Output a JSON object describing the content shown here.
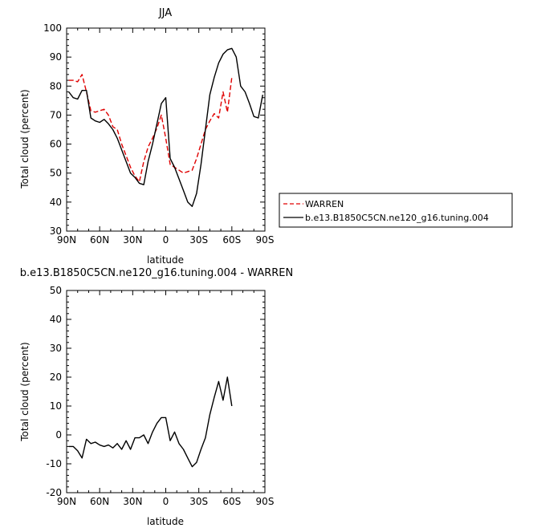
{
  "chart_data": [
    {
      "type": "line",
      "title": "JJA",
      "xlabel": "latitude",
      "ylabel": "Total cloud (percent)",
      "xlim": [
        90,
        -90
      ],
      "ylim": [
        30,
        100
      ],
      "x_ticks": [
        90,
        60,
        30,
        0,
        -30,
        -60,
        -90
      ],
      "x_tick_labels": [
        "90N",
        "60N",
        "30N",
        "0",
        "30S",
        "60S",
        "90S"
      ],
      "y_ticks": [
        30,
        40,
        50,
        60,
        70,
        80,
        90,
        100
      ],
      "y_tick_labels": [
        "30",
        "40",
        "50",
        "60",
        "70",
        "80",
        "90",
        "100"
      ],
      "legend": {
        "placement": "right",
        "entries": [
          {
            "label": "WARREN",
            "color": "#e00000",
            "dash": "dashed"
          },
          {
            "label": "b.e13.B1850C5CN.ne120_g16.tuning.004",
            "color": "#000000",
            "dash": "solid"
          }
        ]
      },
      "series": [
        {
          "name": "WARREN",
          "color": "#e00000",
          "dash": "dashed",
          "x": [
            88,
            84,
            80,
            76,
            72,
            68,
            64,
            60,
            56,
            52,
            48,
            44,
            40,
            36,
            32,
            28,
            24,
            20,
            16,
            12,
            8,
            4,
            0,
            -4,
            -8,
            -12,
            -16,
            -20,
            -24,
            -28,
            -32,
            -36,
            -40,
            -44,
            -48,
            -52,
            -56,
            -60
          ],
          "y": [
            82,
            82,
            81.5,
            84,
            78,
            71.5,
            71,
            71.5,
            72,
            70,
            66,
            65,
            60,
            56,
            52,
            49,
            47,
            54,
            59,
            62,
            65.5,
            70,
            62,
            53,
            52,
            51,
            50,
            50.5,
            51,
            55,
            60,
            65,
            68,
            70.5,
            69,
            78,
            71,
            83
          ]
        },
        {
          "name": "b.e13.B1850C5CN.ne120_g16.tuning.004",
          "color": "#000000",
          "dash": "solid",
          "x": [
            88,
            84,
            80,
            76,
            72,
            68,
            64,
            60,
            56,
            52,
            48,
            44,
            40,
            36,
            32,
            28,
            24,
            20,
            16,
            12,
            8,
            4,
            0,
            -4,
            -8,
            -12,
            -16,
            -20,
            -24,
            -28,
            -32,
            -36,
            -40,
            -44,
            -48,
            -52,
            -56,
            -60,
            -64,
            -68,
            -72,
            -76,
            -80,
            -84,
            -88
          ],
          "y": [
            78,
            76,
            75.5,
            78.5,
            78.5,
            69,
            68,
            67.5,
            68.5,
            67,
            65,
            62,
            58,
            54,
            50,
            48.5,
            46.5,
            46,
            54,
            60,
            67,
            74,
            76,
            55,
            52,
            48,
            44,
            40,
            38.5,
            43,
            53,
            65,
            77,
            83,
            88,
            91,
            92.5,
            93,
            90,
            80,
            78,
            74,
            69.5,
            69,
            77
          ]
        }
      ]
    },
    {
      "type": "line",
      "title": "b.e13.B1850C5CN.ne120_g16.tuning.004 - WARREN",
      "xlabel": "latitude",
      "ylabel": "Total cloud (percent)",
      "xlim": [
        90,
        -90
      ],
      "ylim": [
        -20,
        50
      ],
      "x_ticks": [
        90,
        60,
        30,
        0,
        -30,
        -60,
        -90
      ],
      "x_tick_labels": [
        "90N",
        "60N",
        "30N",
        "0",
        "30S",
        "60S",
        "90S"
      ],
      "y_ticks": [
        -20,
        -10,
        0,
        10,
        20,
        30,
        40,
        50
      ],
      "y_tick_labels": [
        "-20",
        "-10",
        "0",
        "10",
        "20",
        "30",
        "40",
        "50"
      ],
      "series": [
        {
          "color": "#000000",
          "dash": "solid",
          "x": [
            88,
            84,
            80,
            76,
            72,
            68,
            64,
            60,
            56,
            52,
            48,
            44,
            40,
            36,
            32,
            28,
            24,
            20,
            16,
            12,
            8,
            4,
            0,
            -4,
            -8,
            -12,
            -16,
            -20,
            -24,
            -28,
            -32,
            -36,
            -40,
            -44,
            -48,
            -52,
            -56,
            -60
          ],
          "y": [
            -4,
            -4,
            -5.5,
            -8,
            -1.5,
            -3,
            -2.5,
            -3.5,
            -4,
            -3.5,
            -4.5,
            -3,
            -5,
            -2,
            -5,
            -1,
            -1,
            0,
            -3,
            1,
            4,
            6,
            6,
            -2,
            1,
            -3,
            -5,
            -8,
            -11,
            -9.5,
            -5,
            -1,
            7,
            13,
            18.5,
            12,
            20,
            10
          ]
        }
      ]
    }
  ]
}
